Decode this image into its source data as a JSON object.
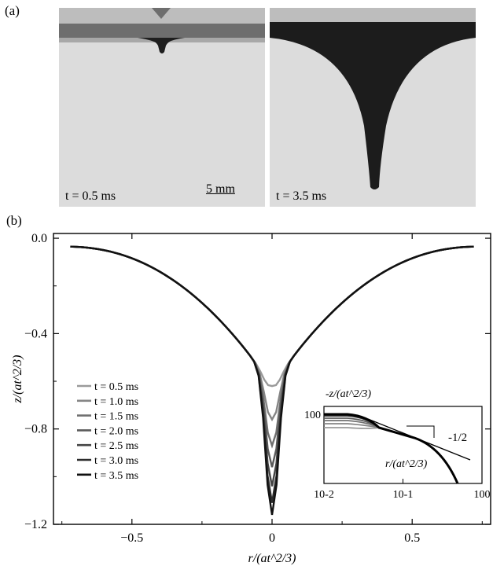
{
  "panel_a": {
    "label": "(a)",
    "photos": [
      {
        "time_label": "t = 0.5 ms"
      },
      {
        "time_label": "t = 3.5 ms"
      }
    ],
    "scale_bar_label": "5 mm"
  },
  "panel_b": {
    "label": "(b)"
  },
  "chart_data": [
    {
      "type": "line",
      "xlabel": "r/(at^2/3)",
      "ylabel": "z/(at^2/3)",
      "xlim": [
        -0.78,
        0.78
      ],
      "ylim": [
        -1.2,
        0.02
      ],
      "xticks": [
        -0.5,
        0,
        0.5
      ],
      "xtick_labels": [
        "−0.5",
        "0",
        "0.5"
      ],
      "yticks": [
        0.0,
        -0.4,
        -0.8,
        -1.2
      ],
      "ytick_labels": [
        "0.0",
        "−0.4",
        "−0.8",
        "−1.2"
      ],
      "legend_position": "lower-left",
      "series": [
        {
          "name": "t = 0.5 ms",
          "color": "#9a9a9a",
          "extent": 0.63,
          "min_z": -0.62
        },
        {
          "name": "t = 1.0 ms",
          "color": "#858585",
          "extent": 0.66,
          "min_z": -0.76
        },
        {
          "name": "t = 1.5 ms",
          "color": "#707070",
          "extent": 0.68,
          "min_z": -0.87
        },
        {
          "name": "t = 2.0 ms",
          "color": "#5a5a5a",
          "extent": 0.7,
          "min_z": -0.96
        },
        {
          "name": "t = 2.5 ms",
          "color": "#444444",
          "extent": 0.71,
          "min_z": -1.04
        },
        {
          "name": "t = 3.0 ms",
          "color": "#2c2c2c",
          "extent": 0.72,
          "min_z": -1.11
        },
        {
          "name": "t = 3.5 ms",
          "color": "#111111",
          "extent": 0.72,
          "min_z": -1.16
        }
      ]
    },
    {
      "type": "line",
      "title": "inset",
      "xlabel": "r/(at^2/3)",
      "ylabel": "-z/(at^2/3)",
      "xscale": "log",
      "yscale": "log",
      "xlim": [
        0.01,
        1
      ],
      "xtick_labels": [
        "10-2",
        "10-1",
        "100"
      ],
      "ytick_labels": [
        "100"
      ],
      "slope_label": "-1/2",
      "slope": -0.5
    }
  ]
}
